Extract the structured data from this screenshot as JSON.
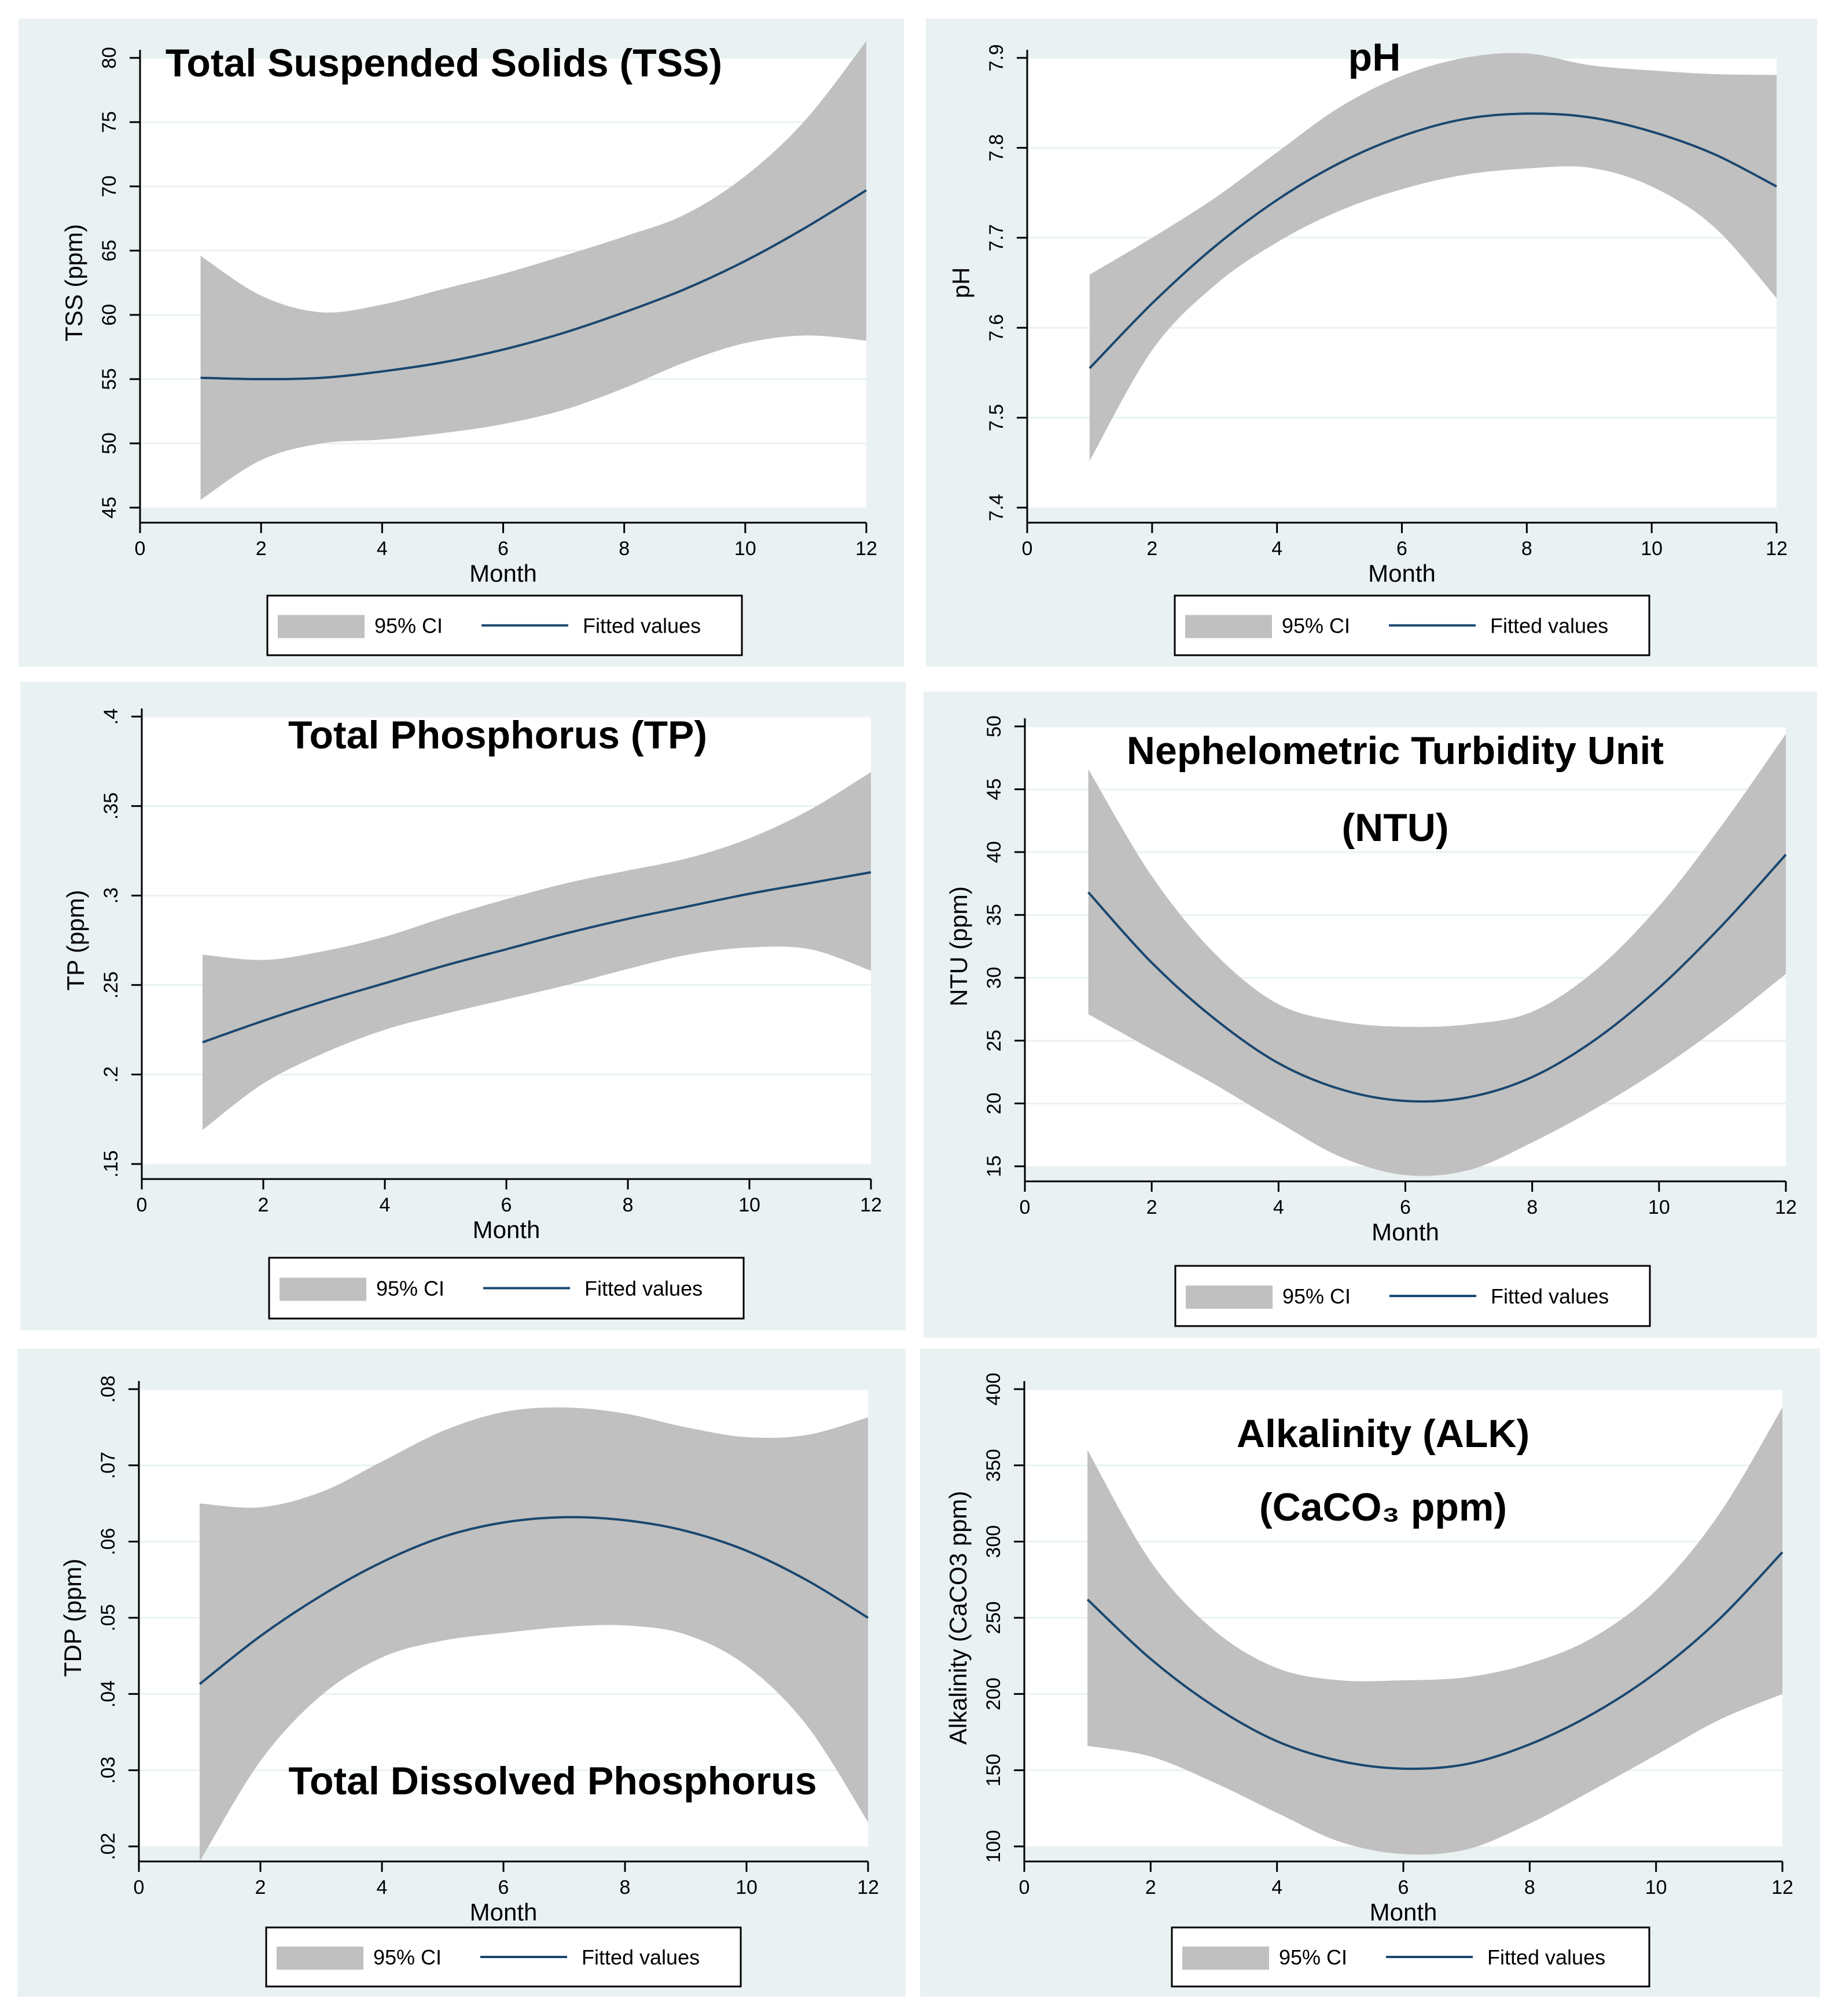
{
  "chart_data": [
    {
      "type": "line",
      "title_lines": [
        "Total Suspended Solids (TSS)"
      ],
      "xlabel": "Month",
      "ylabel": "TSS (ppm)",
      "xlim": [
        0,
        12
      ],
      "ylim": [
        45,
        80
      ],
      "xticks": [
        0,
        2,
        4,
        6,
        8,
        10,
        12
      ],
      "xtick_labels": [
        "0",
        "2",
        "4",
        "6",
        "8",
        "10",
        "12"
      ],
      "yticks": [
        45,
        50,
        55,
        60,
        65,
        70,
        75,
        80
      ],
      "ytick_labels": [
        "45",
        "50",
        "55",
        "60",
        "65",
        "70",
        "75",
        "80"
      ],
      "legend": {
        "ci_label": "95% CI",
        "fit_label": "Fitted values"
      },
      "x": [
        1,
        2,
        3,
        4,
        5,
        6,
        7,
        8,
        9,
        10,
        11,
        12
      ],
      "series": [
        {
          "name": "Fitted values",
          "values": [
            55.1,
            55.0,
            55.1,
            55.6,
            56.3,
            57.3,
            58.6,
            60.2,
            62.0,
            64.2,
            66.8,
            69.7
          ]
        },
        {
          "name": "95% CI lower",
          "values": [
            45.6,
            48.7,
            50.0,
            50.3,
            50.8,
            51.5,
            52.6,
            54.3,
            56.3,
            57.8,
            58.4,
            58.0
          ]
        },
        {
          "name": "95% CI upper",
          "values": [
            64.6,
            61.5,
            60.2,
            60.8,
            62.0,
            63.2,
            64.6,
            66.1,
            67.8,
            70.8,
            75.2,
            81.3
          ]
        }
      ],
      "colors": {
        "fit": "#1a476f",
        "ci": "#c0c0c0"
      }
    },
    {
      "type": "line",
      "title_lines": [
        "pH"
      ],
      "xlabel": "Month",
      "ylabel": "pH",
      "xlim": [
        0,
        12
      ],
      "ylim": [
        7.4,
        7.9
      ],
      "xticks": [
        0,
        2,
        4,
        6,
        8,
        10,
        12
      ],
      "xtick_labels": [
        "0",
        "2",
        "4",
        "6",
        "8",
        "10",
        "12"
      ],
      "yticks": [
        7.4,
        7.5,
        7.6,
        7.7,
        7.8,
        7.9
      ],
      "ytick_labels": [
        "7.4",
        "7.5",
        "7.6",
        "7.7",
        "7.8",
        "7.9"
      ],
      "legend": {
        "ci_label": "95% CI",
        "fit_label": "Fitted values"
      },
      "x": [
        1,
        2,
        3,
        4,
        5,
        6,
        7,
        8,
        9,
        10,
        11,
        12
      ],
      "series": [
        {
          "name": "Fitted values",
          "values": [
            7.555,
            7.627,
            7.69,
            7.742,
            7.783,
            7.813,
            7.832,
            7.838,
            7.834,
            7.818,
            7.793,
            7.757
          ]
        },
        {
          "name": "95% CI lower",
          "values": [
            7.452,
            7.575,
            7.647,
            7.695,
            7.73,
            7.754,
            7.77,
            7.777,
            7.778,
            7.757,
            7.712,
            7.633
          ]
        },
        {
          "name": "95% CI upper",
          "values": [
            7.659,
            7.7,
            7.744,
            7.795,
            7.845,
            7.88,
            7.9,
            7.905,
            7.892,
            7.886,
            7.882,
            7.881
          ]
        }
      ],
      "colors": {
        "fit": "#1a476f",
        "ci": "#c0c0c0"
      }
    },
    {
      "type": "line",
      "title_lines": [
        "Total Phosphorus (TP)"
      ],
      "xlabel": "Month",
      "ylabel": "TP (ppm)",
      "xlim": [
        0,
        12
      ],
      "ylim": [
        0.15,
        0.4
      ],
      "xticks": [
        0,
        2,
        4,
        6,
        8,
        10,
        12
      ],
      "xtick_labels": [
        "0",
        "2",
        "4",
        "6",
        "8",
        "10",
        "12"
      ],
      "yticks": [
        0.15,
        0.2,
        0.25,
        0.3,
        0.35,
        0.4
      ],
      "ytick_labels": [
        ".15",
        ".2",
        ".25",
        ".3",
        ".35",
        ".4"
      ],
      "legend": {
        "ci_label": "95% CI",
        "fit_label": "Fitted values"
      },
      "x": [
        1,
        2,
        3,
        4,
        5,
        6,
        7,
        8,
        9,
        10,
        11,
        12
      ],
      "series": [
        {
          "name": "Fitted values",
          "values": [
            0.218,
            0.23,
            0.241,
            0.251,
            0.261,
            0.27,
            0.279,
            0.287,
            0.294,
            0.301,
            0.307,
            0.313
          ]
        },
        {
          "name": "95% CI lower",
          "values": [
            0.169,
            0.195,
            0.212,
            0.225,
            0.234,
            0.242,
            0.25,
            0.259,
            0.267,
            0.271,
            0.27,
            0.258
          ]
        },
        {
          "name": "95% CI upper",
          "values": [
            0.267,
            0.264,
            0.269,
            0.277,
            0.288,
            0.298,
            0.307,
            0.314,
            0.321,
            0.332,
            0.348,
            0.369
          ]
        }
      ],
      "colors": {
        "fit": "#1a476f",
        "ci": "#c0c0c0"
      }
    },
    {
      "type": "line",
      "title_lines": [
        "Nephelometric Turbidity Unit",
        "(NTU)"
      ],
      "xlabel": "Month",
      "ylabel": "NTU (ppm)",
      "xlim": [
        0,
        12
      ],
      "ylim": [
        15,
        50
      ],
      "xticks": [
        0,
        2,
        4,
        6,
        8,
        10,
        12
      ],
      "xtick_labels": [
        "0",
        "2",
        "4",
        "6",
        "8",
        "10",
        "12"
      ],
      "yticks": [
        15,
        20,
        25,
        30,
        35,
        40,
        45,
        50
      ],
      "ytick_labels": [
        "15",
        "20",
        "25",
        "30",
        "35",
        "40",
        "45",
        "50"
      ],
      "legend": {
        "ci_label": "95% CI",
        "fit_label": "Fitted values"
      },
      "x": [
        1,
        2,
        3,
        4,
        5,
        6,
        7,
        8,
        9,
        10,
        11,
        12
      ],
      "series": [
        {
          "name": "Fitted values",
          "values": [
            36.8,
            31.2,
            26.7,
            23.2,
            21.1,
            20.2,
            20.5,
            22.1,
            25.1,
            29.2,
            34.2,
            39.8
          ]
        },
        {
          "name": "95% CI lower",
          "values": [
            27.1,
            24.3,
            21.5,
            18.5,
            15.7,
            14.3,
            14.7,
            16.9,
            19.6,
            22.7,
            26.3,
            30.3
          ]
        },
        {
          "name": "95% CI upper",
          "values": [
            46.6,
            38.1,
            31.9,
            27.9,
            26.5,
            26.1,
            26.3,
            27.3,
            30.6,
            35.7,
            42.2,
            49.4
          ]
        }
      ],
      "colors": {
        "fit": "#1a476f",
        "ci": "#c0c0c0"
      }
    },
    {
      "type": "line",
      "title_lines": [
        "Total Dissolved Phosphorus"
      ],
      "title_position": "bottom",
      "xlabel": "Month",
      "ylabel": "TDP (ppm)",
      "xlim": [
        0,
        12
      ],
      "ylim": [
        0.02,
        0.08
      ],
      "xticks": [
        0,
        2,
        4,
        6,
        8,
        10,
        12
      ],
      "xtick_labels": [
        "0",
        "2",
        "4",
        "6",
        "8",
        "10",
        "12"
      ],
      "yticks": [
        0.02,
        0.03,
        0.04,
        0.05,
        0.06,
        0.07,
        0.08
      ],
      "ytick_labels": [
        ".02",
        ".03",
        ".04",
        ".05",
        ".06",
        ".07",
        ".08"
      ],
      "legend": {
        "ci_label": "95% CI",
        "fit_label": "Fitted values"
      },
      "x": [
        1,
        2,
        3,
        4,
        5,
        6,
        7,
        8,
        9,
        10,
        11,
        12
      ],
      "series": [
        {
          "name": "Fitted values",
          "values": [
            0.0413,
            0.0476,
            0.0529,
            0.0573,
            0.0606,
            0.0625,
            0.0632,
            0.0628,
            0.0614,
            0.0588,
            0.0549,
            0.05
          ]
        },
        {
          "name": "95% CI lower",
          "values": [
            0.018,
            0.0312,
            0.0398,
            0.0448,
            0.047,
            0.048,
            0.0488,
            0.049,
            0.0478,
            0.0437,
            0.0358,
            0.0232
          ]
        },
        {
          "name": "95% CI upper",
          "values": [
            0.065,
            0.0645,
            0.0665,
            0.0705,
            0.0745,
            0.077,
            0.0776,
            0.0768,
            0.075,
            0.0737,
            0.074,
            0.0763
          ]
        }
      ],
      "colors": {
        "fit": "#1a476f",
        "ci": "#c0c0c0"
      }
    },
    {
      "type": "line",
      "title_lines": [
        "Alkalinity (ALK)",
        "(CaCO₃ ppm)"
      ],
      "xlabel": "Month",
      "ylabel": "Alkalinity (CaCO3 ppm)",
      "xlim": [
        0,
        12
      ],
      "ylim": [
        100,
        400
      ],
      "xticks": [
        0,
        2,
        4,
        6,
        8,
        10,
        12
      ],
      "xtick_labels": [
        "0",
        "2",
        "4",
        "6",
        "8",
        "10",
        "12"
      ],
      "yticks": [
        100,
        150,
        200,
        250,
        300,
        350,
        400
      ],
      "ytick_labels": [
        "100",
        "150",
        "200",
        "250",
        "300",
        "350",
        "400"
      ],
      "legend": {
        "ci_label": "95% CI",
        "fit_label": "Fitted values"
      },
      "x": [
        1,
        2,
        3,
        4,
        5,
        6,
        7,
        8,
        9,
        10,
        11,
        12
      ],
      "series": [
        {
          "name": "Fitted values",
          "values": [
            262,
            223,
            192,
            169,
            156,
            151,
            154,
            167,
            187,
            214,
            249,
            293
          ]
        },
        {
          "name": "95% CI lower",
          "values": [
            166,
            159,
            142,
            122,
            103,
            95,
            98,
            115,
            137,
            160,
            183,
            200
          ]
        },
        {
          "name": "95% CI upper",
          "values": [
            360,
            287,
            242,
            217,
            209,
            209,
            211,
            220,
            237,
            268,
            318,
            388
          ]
        }
      ],
      "colors": {
        "fit": "#1a476f",
        "ci": "#c0c0c0"
      }
    }
  ]
}
